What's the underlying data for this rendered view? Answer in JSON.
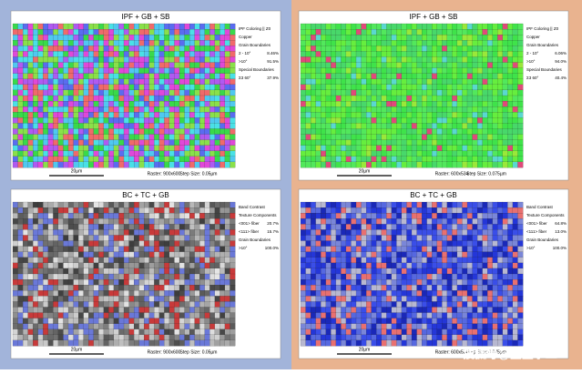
{
  "panels": [
    {
      "title": "IPF + GB + SB",
      "palette": "ipf-fine",
      "legend": [
        {
          "label": "IPF Coloring || Z0"
        },
        {
          "label": "Copper"
        },
        {
          "label": "Grain Boundaries"
        },
        {
          "label": "2 - 10°",
          "value": "8.46%"
        },
        {
          "label": ">10°",
          "value": "91.5%"
        },
        {
          "label": "Special Boundaries"
        },
        {
          "label": "Σ3 60°",
          "value": "37.9%"
        }
      ],
      "scale": "20µm",
      "raster": "Raster: 900x600",
      "step": "Step Size: 0.05µm"
    },
    {
      "title": "IPF + GB + SB",
      "palette": "ipf-green",
      "legend": [
        {
          "label": "IPF Coloring || Z0"
        },
        {
          "label": "Copper"
        },
        {
          "label": "Grain Boundaries"
        },
        {
          "label": "2 - 10°",
          "value": "6.06%"
        },
        {
          "label": ">10°",
          "value": "94.0%"
        },
        {
          "label": "Special Boundaries"
        },
        {
          "label": "Σ3 60°",
          "value": "40.4%"
        }
      ],
      "scale": "20µm",
      "raster": "Raster: 600x534",
      "step": "Step Size: 0.075µm"
    },
    {
      "title": "BC + TC + GB",
      "palette": "bc-fine",
      "legend": [
        {
          "label": "Band Contrast"
        },
        {
          "label": "Texture Components"
        },
        {
          "label": "<001> fiber",
          "value": "20.7%"
        },
        {
          "label": "<111> fiber",
          "value": "15.7%"
        },
        {
          "label": "Grain Boundaries"
        },
        {
          "label": ">10°",
          "value": "100.0%"
        }
      ],
      "scale": "20µm",
      "raster": "Raster: 900x600",
      "step": "Step Size: 0.05µm"
    },
    {
      "title": "BC + TC + GB",
      "palette": "bc-blue",
      "legend": [
        {
          "label": "Band Contrast"
        },
        {
          "label": "Texture Components"
        },
        {
          "label": "<001> fiber",
          "value": "64.8%"
        },
        {
          "label": "<111> fiber",
          "value": "13.0%"
        },
        {
          "label": "Grain Boundaries"
        },
        {
          "label": ">10°",
          "value": "100.0%"
        }
      ],
      "scale": "20µm",
      "raster": "Raster: 600x534",
      "step": "Step Size: 0.075µm"
    }
  ],
  "watermark": "搜狐号@金鉴李工"
}
